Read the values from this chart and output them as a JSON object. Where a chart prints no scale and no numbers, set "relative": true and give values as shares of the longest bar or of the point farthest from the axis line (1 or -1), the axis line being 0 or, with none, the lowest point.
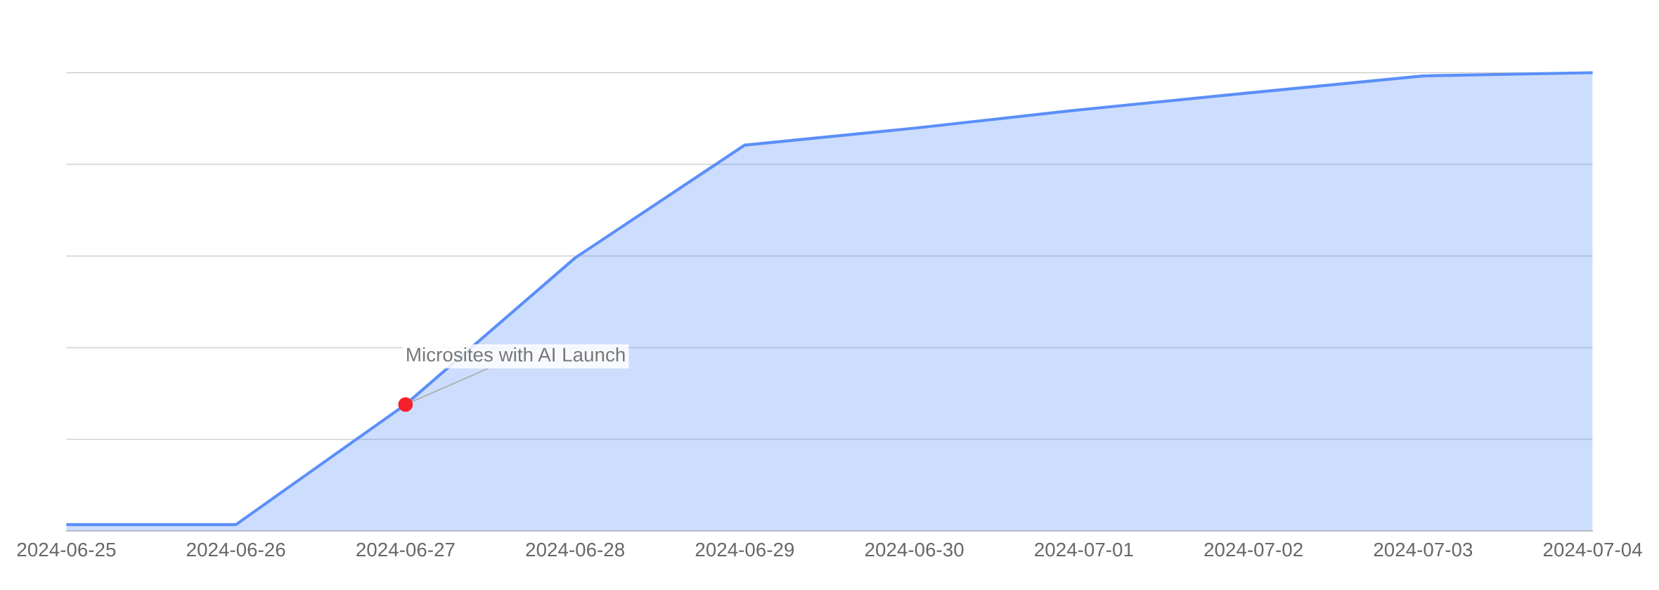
{
  "chart_data": {
    "type": "area",
    "relative": true,
    "x": [
      "2024-06-25",
      "2024-06-26",
      "2024-06-27",
      "2024-06-28",
      "2024-06-29",
      "2024-06-30",
      "2024-07-01",
      "2024-07-02",
      "2024-07-03",
      "2024-07-04"
    ],
    "series": [
      {
        "color": "#5b8ff9",
        "values": [
          0.014,
          0.014,
          0.276,
          0.596,
          0.842,
          0.879,
          0.92,
          0.957,
          0.993,
          1
        ]
      }
    ],
    "xlim": [
      "2024-06-25",
      "2024-07-04"
    ],
    "xticks": [
      "2024-06-25",
      "2024-06-26",
      "2024-06-27",
      "2024-06-28",
      "2024-06-29",
      "2024-06-30",
      "2024-07-01",
      "2024-07-02",
      "2024-07-03",
      "2024-07-04"
    ],
    "annotations": [
      {
        "text": "Microsites with AI Launch",
        "x": "2024-06-27",
        "y": 0.276
      }
    ],
    "grid": "y",
    "legend": false
  }
}
